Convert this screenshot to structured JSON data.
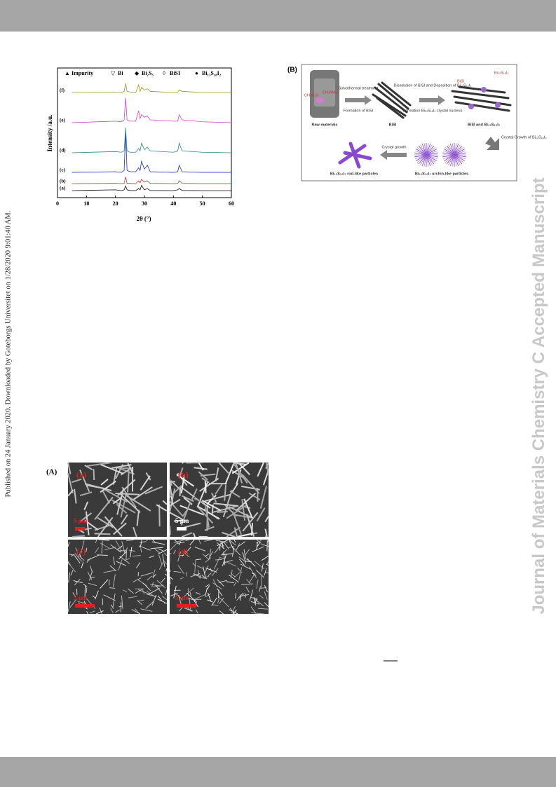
{
  "side_note": "Published on 24 January 2020. Downloaded by Goteborgs Universitet on 1/28/2020 9:01:40 AM.",
  "watermark": "Journal of Materials Chemistry C Accepted Manuscript",
  "chart_data": {
    "type": "line",
    "xlabel": "2θ (°)",
    "ylabel": "Intensity /a.u.",
    "legend": [
      "Impurity",
      "Bi",
      "Bi₂S₃",
      "BiSI",
      "Bi₁₃S₁₈I₂"
    ],
    "xlim": [
      0,
      60
    ],
    "xticks": [
      0,
      10,
      20,
      30,
      40,
      50,
      60
    ],
    "ylim": [
      0,
      10
    ],
    "x": [
      5,
      20,
      22,
      23,
      23.5,
      24,
      25,
      27,
      28,
      28.5,
      29,
      30,
      31,
      32,
      40,
      41.5,
      42,
      43,
      50,
      60
    ],
    "series": [
      {
        "name": "(a)",
        "color": "#111111",
        "values": [
          0.54,
          0.6,
          0.54,
          0.6,
          0.9,
          0.6,
          0.55,
          0.54,
          0.7,
          0.6,
          0.95,
          0.6,
          0.7,
          0.55,
          0.54,
          0.6,
          0.7,
          0.55,
          0.54,
          0.54
        ]
      },
      {
        "name": "(b)",
        "color": "#d03030",
        "values": [
          1.08,
          1.1,
          1.08,
          1.1,
          1.6,
          1.1,
          1.1,
          1.08,
          1.3,
          1.15,
          1.4,
          1.2,
          1.3,
          1.1,
          1.08,
          1.1,
          1.3,
          1.1,
          1.08,
          1.08
        ]
      },
      {
        "name": "(c)",
        "color": "#2030c0",
        "values": [
          1.95,
          2.0,
          1.95,
          2.1,
          5.0,
          2.1,
          2.0,
          2.0,
          2.3,
          2.1,
          2.8,
          2.2,
          2.5,
          2.0,
          1.95,
          2.0,
          2.5,
          2.0,
          1.95,
          1.95
        ]
      },
      {
        "name": "(d)",
        "color": "#2a8a8a",
        "values": [
          3.46,
          3.55,
          3.5,
          3.6,
          5.4,
          3.6,
          3.5,
          3.5,
          3.8,
          3.6,
          4.2,
          3.7,
          3.9,
          3.6,
          3.5,
          3.6,
          4.2,
          3.6,
          3.5,
          3.46
        ]
      },
      {
        "name": "(e)",
        "color": "#d040d0",
        "values": [
          5.78,
          5.9,
          5.85,
          6.0,
          7.7,
          6.0,
          5.9,
          5.9,
          6.7,
          6.1,
          6.4,
          6.2,
          6.3,
          6.0,
          5.9,
          5.9,
          6.4,
          6.0,
          5.85,
          5.78
        ]
      },
      {
        "name": "(f)",
        "color": "#9a9a20",
        "values": [
          8.1,
          8.15,
          8.1,
          8.2,
          8.8,
          8.2,
          8.15,
          8.1,
          8.7,
          8.2,
          8.5,
          8.3,
          8.4,
          8.2,
          8.1,
          8.15,
          8.3,
          8.2,
          8.1,
          8.1
        ]
      }
    ]
  },
  "schematic": {
    "panel": "(B)",
    "raw": "Raw materials",
    "reagent1": "CH₄N₂S",
    "reagent2": "CH₃NH₃I",
    "step1": "Solvothermal treatment",
    "step1b": "Formation of BiSI",
    "bisi": "BiSI",
    "step2": "Dissolution of BiSI and Deposition of Bi₁₃S₁₈I₂",
    "step2b": "Formation Bi₁₃S₁₈I₂ crystal nucleus",
    "mix": "BiSI and Bi₁₃S₁₈I₂",
    "lab_bisi": "BiSI",
    "lab_bsi": "Bi₁₃S₁₈I₂",
    "step3": "Crystal Growth of Bi₁₃S₁₈I₂",
    "step4": "Crystal growth",
    "urchin": "Bi₁₃S₁₈I₂ urchin-like particles",
    "rod": "Bi₁₃S₁₈I₂ rod-like particles"
  },
  "sem": {
    "panel": "(A)",
    "images": [
      {
        "label": "(a)",
        "scale": "5 μm"
      },
      {
        "label": "(b)",
        "scale": "5 μm"
      },
      {
        "label": "(c)",
        "scale": "5 μm"
      },
      {
        "label": "(d)",
        "scale": "5 μm"
      }
    ]
  }
}
